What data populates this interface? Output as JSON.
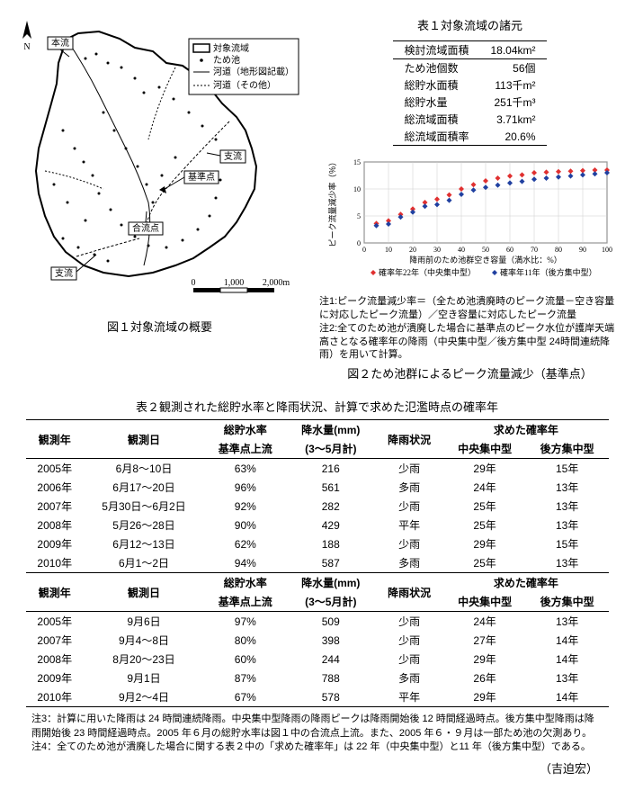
{
  "map": {
    "caption": "図１対象流域の概要",
    "legend": {
      "item1": "対象流域",
      "item2": "ため池",
      "item3": "河道（地形図記載）",
      "item4": "河道（その他）"
    },
    "labels": {
      "main": "本流",
      "tributary": "支流",
      "refpoint": "基準点",
      "confluence": "合流点",
      "trib2": "支流"
    },
    "scale_left": "0",
    "scale_mid": "1,000",
    "scale_right": "2,000m"
  },
  "table1": {
    "caption": "表１対象流域の諸元",
    "rows": [
      {
        "label": "検討流域面積",
        "value": "18.04km²"
      },
      {
        "label": "ため池個数",
        "value": "56個"
      },
      {
        "label": "総貯水面積",
        "value": "113千m²"
      },
      {
        "label": "総貯水量",
        "value": "251千m³"
      },
      {
        "label": "総流域面積",
        "value": "3.71km²"
      },
      {
        "label": "総流域面積率",
        "value": "20.6%"
      }
    ]
  },
  "chart": {
    "ylabel": "ピーク流量減少率（％）",
    "xlabel": "降雨前のため池群空き容量（満水比：%）",
    "xlim": [
      0,
      100
    ],
    "ylim": [
      0,
      15
    ],
    "xticks": [
      0,
      10,
      20,
      30,
      40,
      50,
      60,
      70,
      80,
      90,
      100
    ],
    "yticks": [
      0,
      5,
      10,
      15
    ],
    "series1": {
      "label": "確率年22年（中央集中型）",
      "color": "#e03030",
      "marker": "diamond",
      "points": [
        [
          5,
          3.6
        ],
        [
          10,
          4.1
        ],
        [
          15,
          5.3
        ],
        [
          20,
          6.3
        ],
        [
          25,
          7.5
        ],
        [
          30,
          8.1
        ],
        [
          35,
          8.9
        ],
        [
          40,
          10.0
        ],
        [
          45,
          10.8
        ],
        [
          50,
          11.5
        ],
        [
          55,
          12.0
        ],
        [
          60,
          12.4
        ],
        [
          65,
          12.6
        ],
        [
          70,
          13.0
        ],
        [
          75,
          13.1
        ],
        [
          80,
          13.2
        ],
        [
          85,
          13.3
        ],
        [
          90,
          13.4
        ],
        [
          95,
          13.5
        ],
        [
          100,
          13.5
        ]
      ]
    },
    "series2": {
      "label": "確率年11年（後方集中型）",
      "color": "#2040a0",
      "marker": "diamond",
      "points": [
        [
          5,
          3.2
        ],
        [
          10,
          3.5
        ],
        [
          15,
          4.8
        ],
        [
          20,
          5.7
        ],
        [
          25,
          6.8
        ],
        [
          30,
          7.1
        ],
        [
          35,
          7.9
        ],
        [
          40,
          9.0
        ],
        [
          45,
          9.8
        ],
        [
          50,
          10.3
        ],
        [
          55,
          10.7
        ],
        [
          60,
          11.1
        ],
        [
          65,
          11.4
        ],
        [
          70,
          11.8
        ],
        [
          75,
          12.0
        ],
        [
          80,
          12.2
        ],
        [
          85,
          12.4
        ],
        [
          90,
          12.6
        ],
        [
          95,
          12.8
        ],
        [
          100,
          13.0
        ]
      ]
    },
    "note1": "注1:ピーク流量減少率＝（全ため池潰廃時のピーク流量－空き容量に対応したピーク流量）／空き容量に対応したピーク流量",
    "note2": "注2:全てのため池が潰廃した場合に基準点のピーク水位が護岸天端高さとなる確率年の降雨（中央集中型／後方集中型 24時間連続降雨）を用いて計算。",
    "caption": "図２ため池群によるピーク流量減少（基準点）"
  },
  "table2": {
    "caption": "表２観測された総貯水率と降雨状況、計算で求めた氾濫時点の確率年",
    "header": {
      "col1": "観測年",
      "col2": "観測日",
      "col3a": "総貯水率",
      "col3b": "基準点上流",
      "col4a": "降水量(mm)",
      "col4b": "(3～5月計)",
      "col5": "降雨状況",
      "col6": "求めた確率年",
      "col6a": "中央集中型",
      "col6b": "後方集中型"
    },
    "block1": [
      {
        "y": "2005年",
        "d": "6月8～10日",
        "r": "63%",
        "p": "216",
        "s": "少雨",
        "c": "29年",
        "b": "15年"
      },
      {
        "y": "2006年",
        "d": "6月17～20日",
        "r": "96%",
        "p": "561",
        "s": "多雨",
        "c": "24年",
        "b": "13年"
      },
      {
        "y": "2007年",
        "d": "5月30日～6月2日",
        "r": "92%",
        "p": "282",
        "s": "少雨",
        "c": "25年",
        "b": "13年"
      },
      {
        "y": "2008年",
        "d": "5月26～28日",
        "r": "90%",
        "p": "429",
        "s": "平年",
        "c": "25年",
        "b": "13年"
      },
      {
        "y": "2009年",
        "d": "6月12～13日",
        "r": "62%",
        "p": "188",
        "s": "少雨",
        "c": "29年",
        "b": "15年"
      },
      {
        "y": "2010年",
        "d": "6月1～2日",
        "r": "94%",
        "p": "587",
        "s": "多雨",
        "c": "25年",
        "b": "13年"
      }
    ],
    "block2": [
      {
        "y": "2005年",
        "d": "9月6日",
        "r": "97%",
        "p": "509",
        "s": "少雨",
        "c": "24年",
        "b": "13年"
      },
      {
        "y": "2007年",
        "d": "9月4～8日",
        "r": "80%",
        "p": "398",
        "s": "少雨",
        "c": "27年",
        "b": "14年"
      },
      {
        "y": "2008年",
        "d": "8月20～23日",
        "r": "60%",
        "p": "244",
        "s": "少雨",
        "c": "29年",
        "b": "14年"
      },
      {
        "y": "2009年",
        "d": "9月1日",
        "r": "87%",
        "p": "788",
        "s": "多雨",
        "c": "26年",
        "b": "13年"
      },
      {
        "y": "2010年",
        "d": "9月2～4日",
        "r": "67%",
        "p": "578",
        "s": "平年",
        "c": "29年",
        "b": "14年"
      }
    ]
  },
  "footnotes": {
    "n3": "注3：計算に用いた降雨は 24 時間連続降雨。中央集中型降雨の降雨ピークは降雨開始後 12 時間経過時点。後方集中型降雨は降雨開始後 23 時間経過時点。2005 年６月の総貯水率は図１中の合流点上流。また、2005 年６・９月は一部ため池の欠測あり。",
    "n4": "注4：全てのため池が潰廃した場合に関する表２中の「求めた確率年」は 22 年（中央集中型）と11 年（後方集中型）である。"
  },
  "author": "（吉迫宏）"
}
